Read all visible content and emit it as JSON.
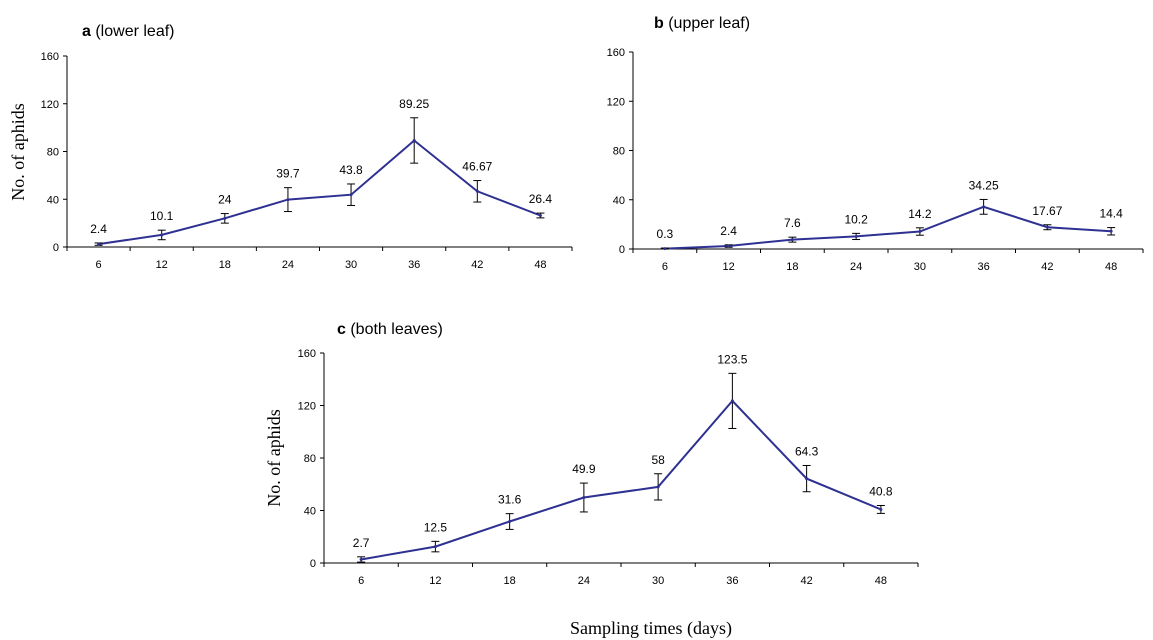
{
  "figure": {
    "xlabel": "Sampling times (days)"
  },
  "chart_data": [
    {
      "type": "line",
      "panel_letter": "a",
      "panel_title": "(lower leaf)",
      "ylabel": "No. of aphids",
      "xlabel": "",
      "categories": [
        "6",
        "12",
        "18",
        "24",
        "30",
        "36",
        "42",
        "48"
      ],
      "values": [
        2.4,
        10.1,
        24,
        39.7,
        43.8,
        89.25,
        46.67,
        26.4
      ],
      "value_labels": [
        "2.4",
        "10.1",
        "24",
        "39.7",
        "43.8",
        "89.25",
        "46.67",
        "26.4"
      ],
      "error": [
        1,
        4,
        4,
        10,
        9,
        19,
        9,
        2
      ],
      "ylim": [
        0,
        160
      ],
      "yticks": [
        "0",
        "40",
        "80",
        "120",
        "160"
      ],
      "line_color": "#2e3192"
    },
    {
      "type": "line",
      "panel_letter": "b",
      "panel_title": "(upper leaf)",
      "ylabel": "",
      "xlabel": "",
      "categories": [
        "6",
        "12",
        "18",
        "24",
        "30",
        "36",
        "42",
        "48"
      ],
      "values": [
        0.3,
        2.4,
        7.6,
        10.2,
        14.2,
        34.25,
        17.67,
        14.4
      ],
      "value_labels": [
        "0.3",
        "2.4",
        "7.6",
        "10.2",
        "14.2",
        "34.25",
        "17.67",
        "14.4"
      ],
      "error": [
        0.5,
        1,
        2,
        2.5,
        3,
        6,
        2,
        3
      ],
      "ylim": [
        0,
        160
      ],
      "yticks": [
        "0",
        "40",
        "80",
        "120",
        "160"
      ],
      "line_color": "#2e3192"
    },
    {
      "type": "line",
      "panel_letter": "c",
      "panel_title": "(both leaves)",
      "ylabel": "No. of aphids",
      "xlabel": "",
      "categories": [
        "6",
        "12",
        "18",
        "24",
        "30",
        "36",
        "42",
        "48"
      ],
      "values": [
        2.7,
        12.5,
        31.6,
        49.9,
        58,
        123.5,
        64.3,
        40.8
      ],
      "value_labels": [
        "2.7",
        "12.5",
        "31.6",
        "49.9",
        "58",
        "123.5",
        "64.3",
        "40.8"
      ],
      "error": [
        2,
        4,
        6,
        11,
        10,
        21,
        10,
        3
      ],
      "ylim": [
        0,
        160
      ],
      "yticks": [
        "0",
        "40",
        "80",
        "120",
        "160"
      ],
      "line_color": "#2e3192"
    }
  ]
}
